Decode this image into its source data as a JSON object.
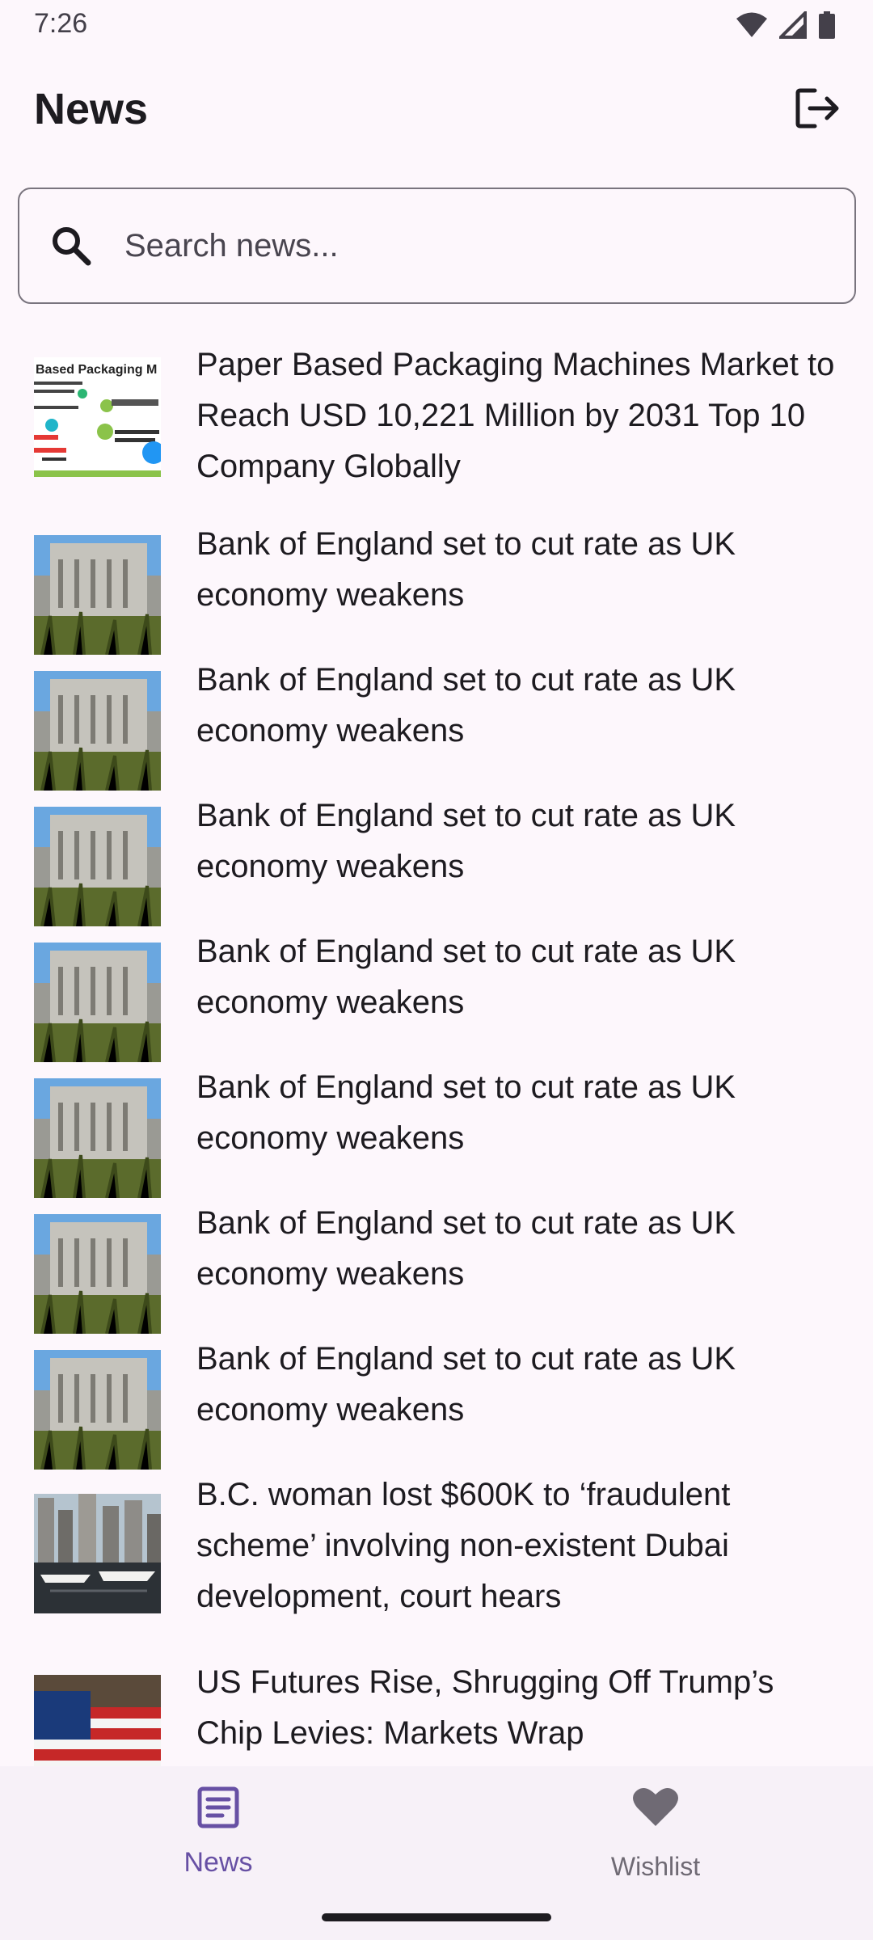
{
  "status_bar": {
    "time": "7:26",
    "icons": [
      "wifi-icon",
      "cell-signal-icon",
      "battery-icon"
    ]
  },
  "app_bar": {
    "title": "News",
    "logout_icon": "logout-icon"
  },
  "search": {
    "placeholder": "Search news...",
    "value": ""
  },
  "news": [
    {
      "title": "Paper Based Packaging Machines Market to Reach USD 10,221 Million by 2031 Top 10 Company Globally",
      "thumb": "infographic",
      "thumb_text": "Based Packaging M"
    },
    {
      "title": "Bank of England set to cut rate as UK economy weakens",
      "thumb": "bank-building"
    },
    {
      "title": "Bank of England set to cut rate as UK economy weakens",
      "thumb": "bank-building"
    },
    {
      "title": "Bank of England set to cut rate as UK economy weakens",
      "thumb": "bank-building"
    },
    {
      "title": "Bank of England set to cut rate as UK economy weakens",
      "thumb": "bank-building"
    },
    {
      "title": "Bank of England set to cut rate as UK economy weakens",
      "thumb": "bank-building"
    },
    {
      "title": "Bank of England set to cut rate as UK economy weakens",
      "thumb": "bank-building"
    },
    {
      "title": "Bank of England set to cut rate as UK economy weakens",
      "thumb": "bank-building"
    },
    {
      "title": "B.C. woman lost $600K to ‘fraudulent scheme’ involving non-existent Dubai development, court hears",
      "thumb": "marina"
    },
    {
      "title": "US Futures Rise, Shrugging Off Trump’s Chip Levies: Markets Wrap",
      "thumb": "us-flag"
    }
  ],
  "bottom_nav": {
    "items": [
      {
        "label": "News",
        "icon": "article-icon",
        "selected": true
      },
      {
        "label": "Wishlist",
        "icon": "heart-icon",
        "selected": false
      }
    ]
  },
  "colors": {
    "background": "#fdf7fc",
    "accent": "#6750a4",
    "text": "#1d1b20",
    "outline": "#79747e"
  }
}
